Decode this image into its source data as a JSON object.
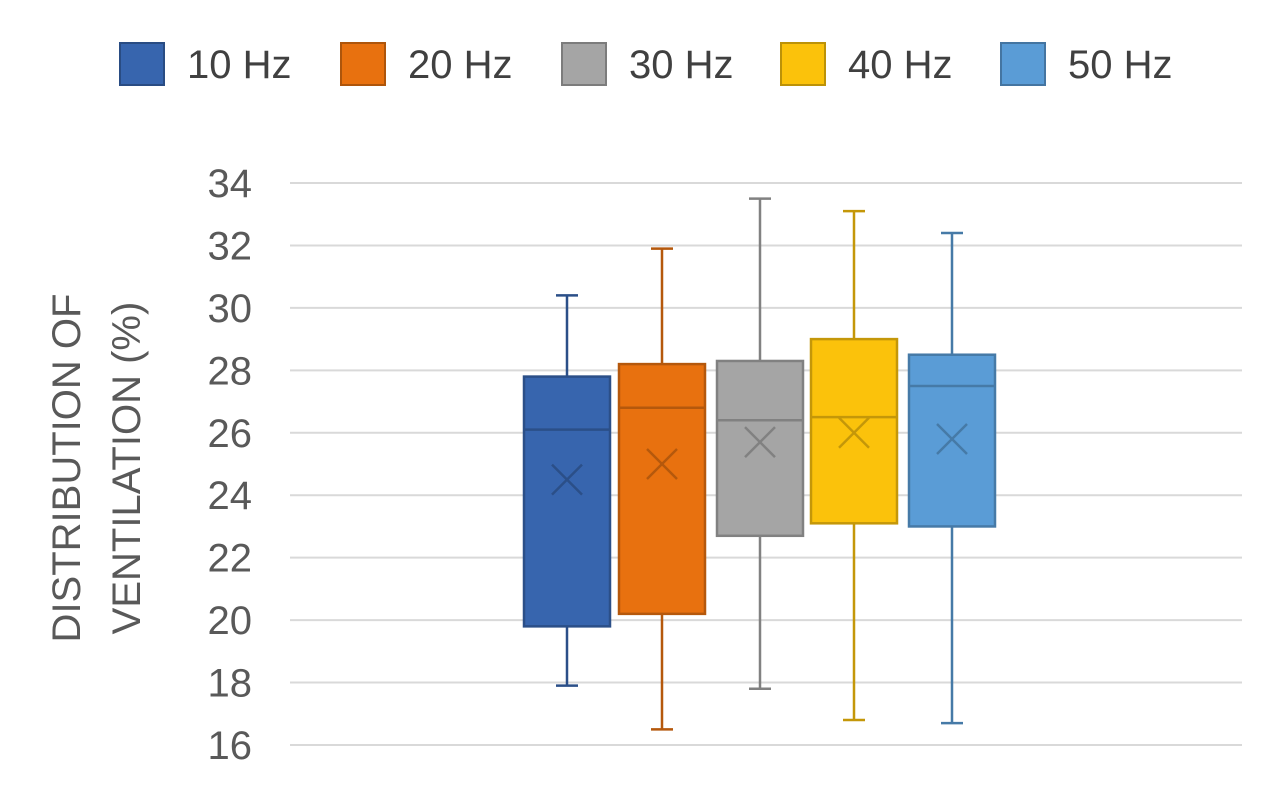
{
  "chart_data": {
    "type": "box",
    "ylabel_lines": [
      "DISTRIBUTION OF",
      "VENTILATION (%)"
    ],
    "ylim": [
      16,
      34
    ],
    "yticks": [
      16,
      18,
      20,
      22,
      24,
      26,
      28,
      30,
      32,
      34
    ],
    "grid": true,
    "legend_position": "top",
    "series": [
      {
        "name": "10 Hz",
        "color": "#3765AE",
        "min": 17.9,
        "q1": 19.8,
        "median": 26.1,
        "q3": 27.8,
        "max": 30.4,
        "mean": 24.5
      },
      {
        "name": "20 Hz",
        "color": "#E8710F",
        "min": 16.5,
        "q1": 20.2,
        "median": 26.8,
        "q3": 28.2,
        "max": 31.9,
        "mean": 25.0
      },
      {
        "name": "30 Hz",
        "color": "#A5A5A5",
        "min": 17.8,
        "q1": 22.7,
        "median": 26.4,
        "q3": 28.3,
        "max": 33.5,
        "mean": 25.7
      },
      {
        "name": "40 Hz",
        "color": "#FBC20B",
        "min": 16.8,
        "q1": 23.1,
        "median": 26.5,
        "q3": 29.0,
        "max": 33.1,
        "mean": 26.0
      },
      {
        "name": "50 Hz",
        "color": "#5A9CD6",
        "min": 16.7,
        "q1": 23.0,
        "median": 27.5,
        "q3": 28.5,
        "max": 32.4,
        "mean": 25.8
      }
    ]
  }
}
